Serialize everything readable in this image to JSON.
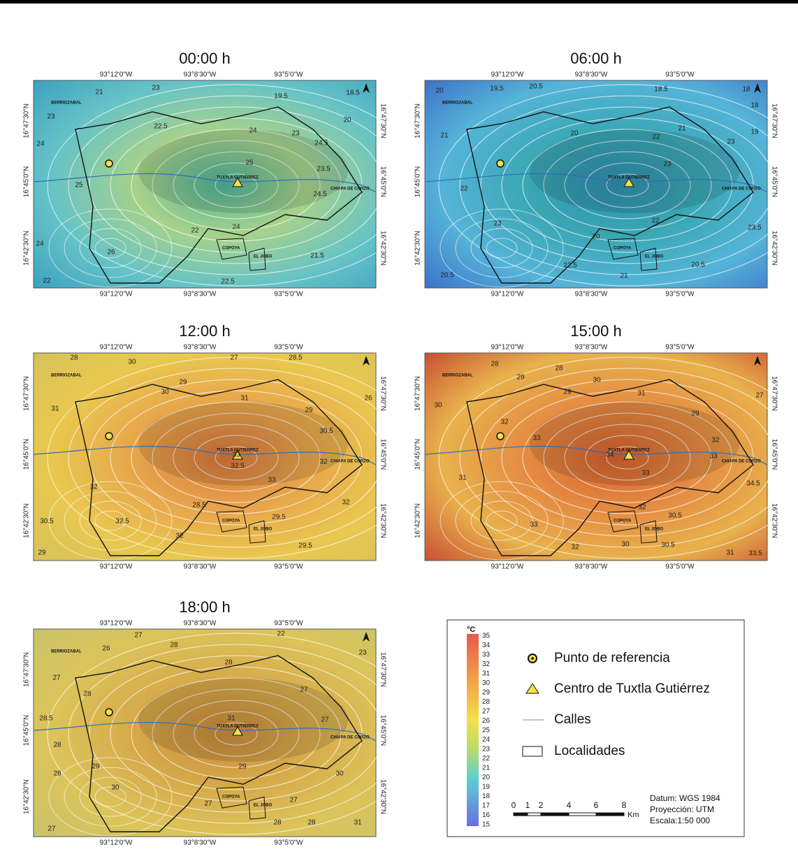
{
  "axes": {
    "lon": [
      "93°12'0\"W",
      "93°8'30\"W",
      "93°5'0\"W"
    ],
    "lat": [
      "16°47'30\"N",
      "16°45'0\"N",
      "16°42'30\"N"
    ]
  },
  "places": [
    "BERRIOZABAL",
    "TUXTLA GUTIÉRREZ",
    "COPOYA",
    "EL JOBO",
    "CHIAPA DE CORZO"
  ],
  "panels": [
    {
      "title": "00:00 h",
      "labels": [
        21,
        23,
        19.5,
        18.5,
        23,
        22.5,
        24,
        23,
        20,
        24,
        25,
        24.5,
        23.5,
        25,
        24.5,
        22,
        24,
        24,
        26,
        21.5,
        22.5,
        22
      ]
    },
    {
      "title": "06:00 h",
      "labels": [
        20,
        19.5,
        20.5,
        18.5,
        18,
        18,
        21,
        20,
        22,
        21,
        23,
        19,
        23,
        22,
        23,
        22,
        20,
        23.5,
        22.5,
        20.5,
        21,
        20.5
      ]
    },
    {
      "title": "12:00 h",
      "labels": [
        28,
        30,
        27,
        28.5,
        29,
        30,
        31,
        29,
        26,
        31,
        30.5,
        33,
        32.5,
        32,
        33,
        32,
        30.5,
        32.5,
        28.5,
        32,
        29.5,
        32,
        29.5,
        29
      ]
    },
    {
      "title": "15:00 h",
      "labels": [
        28,
        28,
        29,
        30,
        29,
        31,
        27,
        30,
        32,
        33,
        29,
        32,
        34,
        33,
        33,
        31,
        34.5,
        32,
        30.5,
        33,
        30,
        30.5,
        32,
        31,
        33.5
      ]
    },
    {
      "title": "18:00 h",
      "labels": [
        27,
        28,
        22,
        23,
        26,
        28,
        27,
        28,
        27,
        28.5,
        31,
        27,
        28,
        29,
        29,
        28,
        30,
        30,
        27,
        27,
        28,
        28,
        27,
        31
      ]
    }
  ],
  "legend": {
    "unit": "°C",
    "scale": [
      35,
      34,
      33,
      32,
      31,
      30,
      29,
      28,
      27,
      26,
      25,
      24,
      23,
      22,
      21,
      20,
      19,
      18,
      17,
      16,
      15
    ],
    "items": [
      "Punto de referencia",
      "Centro de Tuxtla Gutiérrez",
      "Calles",
      "Localidades"
    ],
    "scalebar": [
      0,
      1,
      2,
      4,
      6,
      8
    ],
    "scalebar_unit": "Km",
    "notes": [
      "Datum: WGS 1984",
      "Proyección: UTM",
      "Escala:1:50 000"
    ]
  }
}
